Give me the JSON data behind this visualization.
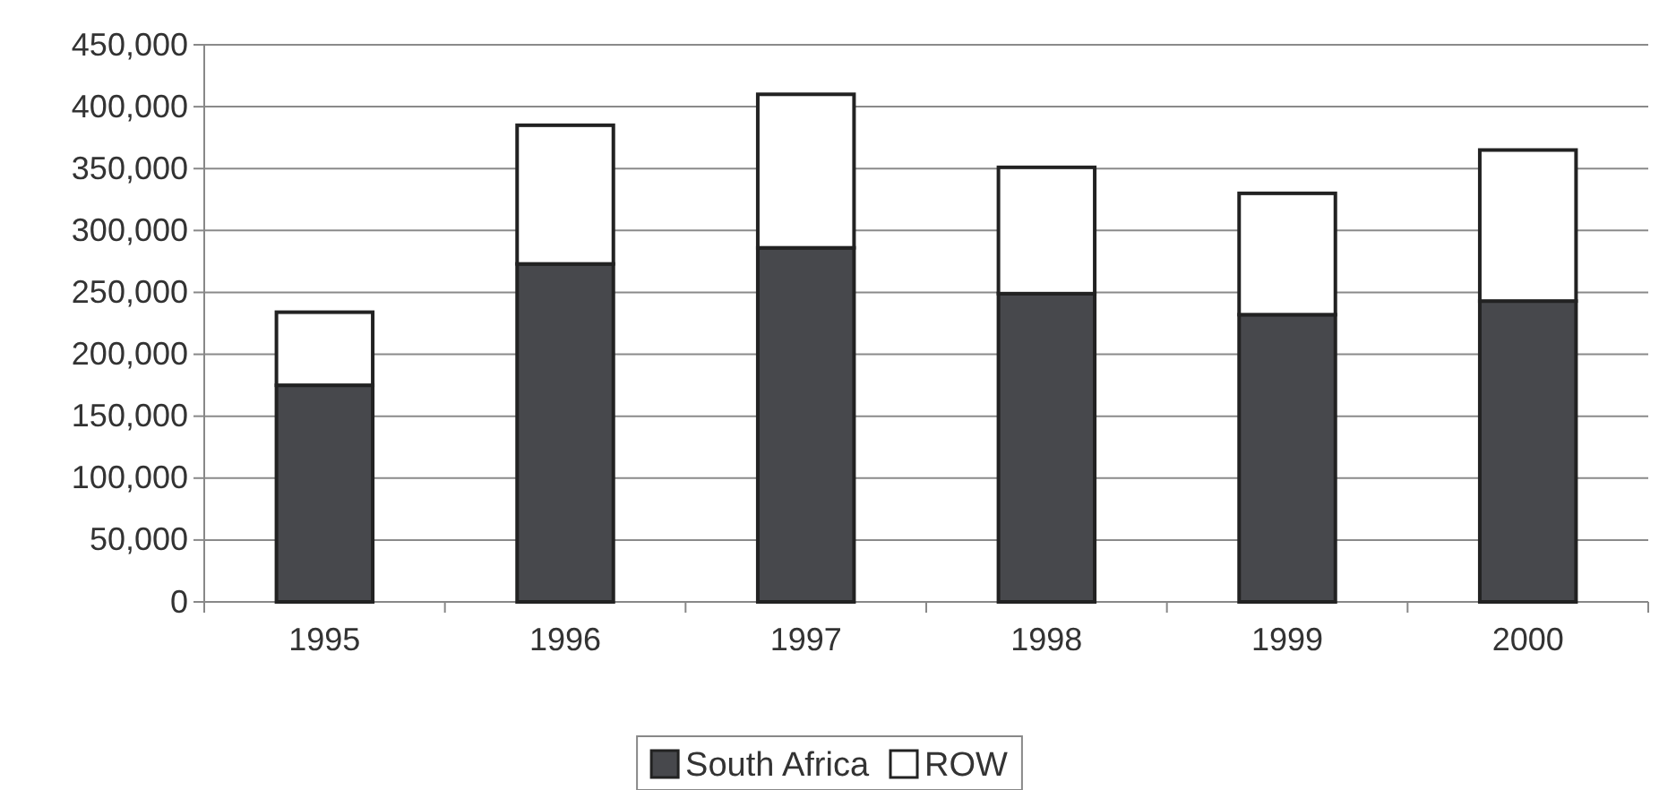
{
  "chart_data": {
    "type": "bar",
    "stacked": true,
    "categories": [
      "1995",
      "1996",
      "1997",
      "1998",
      "1999",
      "2000"
    ],
    "series": [
      {
        "name": "South Africa",
        "color": "#47484c",
        "values": [
          175000,
          273000,
          286000,
          249000,
          232000,
          243000
        ]
      },
      {
        "name": "ROW",
        "color": "#ffffff",
        "values": [
          59000,
          112000,
          124000,
          102000,
          98000,
          122000
        ]
      }
    ],
    "ylim": [
      0,
      450000
    ],
    "yticks": [
      {
        "value": 0,
        "label": "0"
      },
      {
        "value": 50000,
        "label": "50,000"
      },
      {
        "value": 100000,
        "label": "100,000"
      },
      {
        "value": 150000,
        "label": "150,000"
      },
      {
        "value": 200000,
        "label": "200,000"
      },
      {
        "value": 250000,
        "label": "250,000"
      },
      {
        "value": 300000,
        "label": "300,000"
      },
      {
        "value": 350000,
        "label": "350,000"
      },
      {
        "value": 400000,
        "label": "400,000"
      },
      {
        "value": 450000,
        "label": "450,000"
      }
    ],
    "grid": "y",
    "legend": "bottom"
  }
}
